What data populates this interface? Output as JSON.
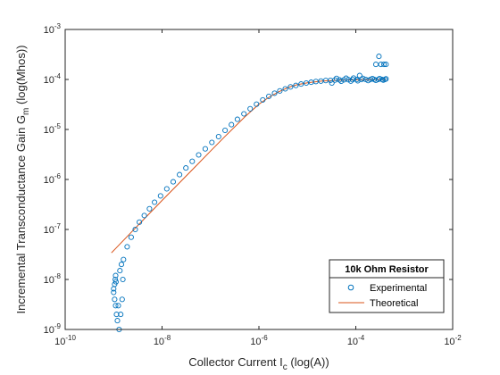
{
  "chart_data": {
    "type": "scatter",
    "x_scale": "log",
    "y_scale": "log",
    "xlim": [
      1e-10,
      0.01
    ],
    "ylim": [
      1e-09,
      0.001
    ],
    "x_ticks": [
      {
        "base": "10",
        "exp": "-10"
      },
      {
        "base": "10",
        "exp": "-8"
      },
      {
        "base": "10",
        "exp": "-6"
      },
      {
        "base": "10",
        "exp": "-4"
      },
      {
        "base": "10",
        "exp": "-2"
      }
    ],
    "y_ticks": [
      {
        "base": "10",
        "exp": "-9"
      },
      {
        "base": "10",
        "exp": "-8"
      },
      {
        "base": "10",
        "exp": "-7"
      },
      {
        "base": "10",
        "exp": "-6"
      },
      {
        "base": "10",
        "exp": "-5"
      },
      {
        "base": "10",
        "exp": "-4"
      },
      {
        "base": "10",
        "exp": "-3"
      }
    ],
    "xlabel": {
      "main": "Collector Current I",
      "sub": "c",
      "tail": " (log(A))"
    },
    "ylabel": {
      "main": "Incremental Transconductance Gain G",
      "sub": "m",
      "tail": " (log(Mhos))"
    },
    "legend": {
      "title": "10k Ohm Resistor",
      "position": "bottom-right",
      "entries": [
        "Experimental",
        "Theoretical"
      ]
    },
    "series": [
      {
        "name": "Experimental",
        "style": "markers",
        "marker": "circle-open",
        "color": "#0072BD",
        "points": [
          [
            1e-09,
            6.5e-09
          ],
          [
            1.05e-09,
            8e-09
          ],
          [
            1.08e-09,
            1e-08
          ],
          [
            1.1e-09,
            1.2e-08
          ],
          [
            1.12e-09,
            9e-09
          ],
          [
            1e-09,
            5.5e-09
          ],
          [
            1.05e-09,
            4e-09
          ],
          [
            1.1e-09,
            3e-09
          ],
          [
            1.15e-09,
            2e-09
          ],
          [
            1.2e-09,
            1.5e-09
          ],
          [
            1.3e-09,
            1e-09
          ],
          [
            1.25e-09,
            3e-09
          ],
          [
            1.35e-09,
            1.5e-08
          ],
          [
            1.45e-09,
            2e-08
          ],
          [
            1.6e-09,
            2.5e-08
          ],
          [
            1.4e-09,
            2e-09
          ],
          [
            1.5e-09,
            4e-09
          ],
          [
            1.55e-09,
            1e-08
          ],
          [
            1.9e-09,
            4.5e-08
          ],
          [
            2.3e-09,
            7e-08
          ],
          [
            2.8e-09,
            1e-07
          ],
          [
            3.4e-09,
            1.4e-07
          ],
          [
            4.3e-09,
            1.9e-07
          ],
          [
            5.5e-09,
            2.6e-07
          ],
          [
            7e-09,
            3.5e-07
          ],
          [
            9.3e-09,
            4.7e-07
          ],
          [
            1.25e-08,
            6.5e-07
          ],
          [
            1.7e-08,
            9e-07
          ],
          [
            2.3e-08,
            1.25e-06
          ],
          [
            3.1e-08,
            1.7e-06
          ],
          [
            4.2e-08,
            2.3e-06
          ],
          [
            5.7e-08,
            3.1e-06
          ],
          [
            7.8e-08,
            4.1e-06
          ],
          [
            1.07e-07,
            5.5e-06
          ],
          [
            1.47e-07,
            7.2e-06
          ],
          [
            2e-07,
            9.6e-06
          ],
          [
            2.7e-07,
            1.25e-05
          ],
          [
            3.6e-07,
            1.6e-05
          ],
          [
            4.9e-07,
            2.05e-05
          ],
          [
            6.6e-07,
            2.6e-05
          ],
          [
            8.9e-07,
            3.2e-05
          ],
          [
            1.2e-06,
            3.9e-05
          ],
          [
            1.6e-06,
            4.6e-05
          ],
          [
            2.1e-06,
            5.3e-05
          ],
          [
            2.7e-06,
            5.9e-05
          ],
          [
            3.5e-06,
            6.5e-05
          ],
          [
            4.5e-06,
            7.1e-05
          ],
          [
            5.8e-06,
            7.6e-05
          ],
          [
            7.4e-06,
            8.1e-05
          ],
          [
            9.5e-06,
            8.5e-05
          ],
          [
            1.2e-05,
            8.8e-05
          ],
          [
            1.5e-05,
            9.1e-05
          ],
          [
            1.9e-05,
            9.3e-05
          ],
          [
            2.4e-05,
            9.5e-05
          ],
          [
            3e-05,
            9.6e-05
          ],
          [
            3.7e-05,
            9.7e-05
          ],
          [
            4.6e-05,
            9.8e-05
          ],
          [
            5.7e-05,
            9.85e-05
          ],
          [
            7e-05,
            9.9e-05
          ],
          [
            8.6e-05,
            9.9e-05
          ],
          [
            0.000105,
            9.95e-05
          ],
          [
            0.00013,
            0.0001
          ],
          [
            0.00016,
            0.0001
          ],
          [
            0.0002,
            0.0001
          ],
          [
            0.00024,
            0.0001
          ],
          [
            0.00029,
            0.0001
          ],
          [
            0.00035,
            0.0001
          ],
          [
            0.0004,
            0.0001
          ],
          [
            3.2e-05,
            8.5e-05
          ],
          [
            4e-05,
            0.000105
          ],
          [
            5e-05,
            9.2e-05
          ],
          [
            6.3e-05,
            0.000106
          ],
          [
            7.9e-05,
            9.3e-05
          ],
          [
            9e-05,
            0.000107
          ],
          [
            0.00011,
            9.4e-05
          ],
          [
            0.00014,
            0.000105
          ],
          [
            0.00018,
            9.5e-05
          ],
          [
            0.00022,
            0.000104
          ],
          [
            0.00026,
            9.6e-05
          ],
          [
            0.00031,
            0.000104
          ],
          [
            0.00037,
            9.7e-05
          ],
          [
            0.00042,
            0.000103
          ],
          [
            0.00012,
            0.00012
          ],
          [
            0.00026,
            0.0002
          ],
          [
            0.0003,
            0.00029
          ],
          [
            0.00033,
            0.0002
          ],
          [
            0.00038,
            0.0002
          ],
          [
            0.00042,
            0.0002
          ]
        ]
      },
      {
        "name": "Theoretical",
        "style": "line",
        "color": "#D95319",
        "points": [
          [
            9e-10,
            3.4e-08
          ],
          [
            2e-09,
            7.6e-08
          ],
          [
            5e-09,
            1.9e-07
          ],
          [
            1e-08,
            3.8e-07
          ],
          [
            2e-08,
            7.5e-07
          ],
          [
            5e-08,
            1.85e-06
          ],
          [
            1e-07,
            3.7e-06
          ],
          [
            2e-07,
            7.3e-06
          ],
          [
            5e-07,
            1.75e-05
          ],
          [
            1e-06,
            3.2e-05
          ],
          [
            1.6e-06,
            4.4e-05
          ],
          [
            2.5e-06,
            5.6e-05
          ],
          [
            4e-06,
            6.9e-05
          ],
          [
            6e-06,
            7.8e-05
          ],
          [
            1e-05,
            8.6e-05
          ],
          [
            2e-05,
            9.3e-05
          ],
          [
            5e-05,
            9.7e-05
          ],
          [
            0.0001,
            9.85e-05
          ],
          [
            0.0002,
            9.95e-05
          ],
          [
            0.00042,
            0.0001
          ]
        ]
      }
    ]
  }
}
